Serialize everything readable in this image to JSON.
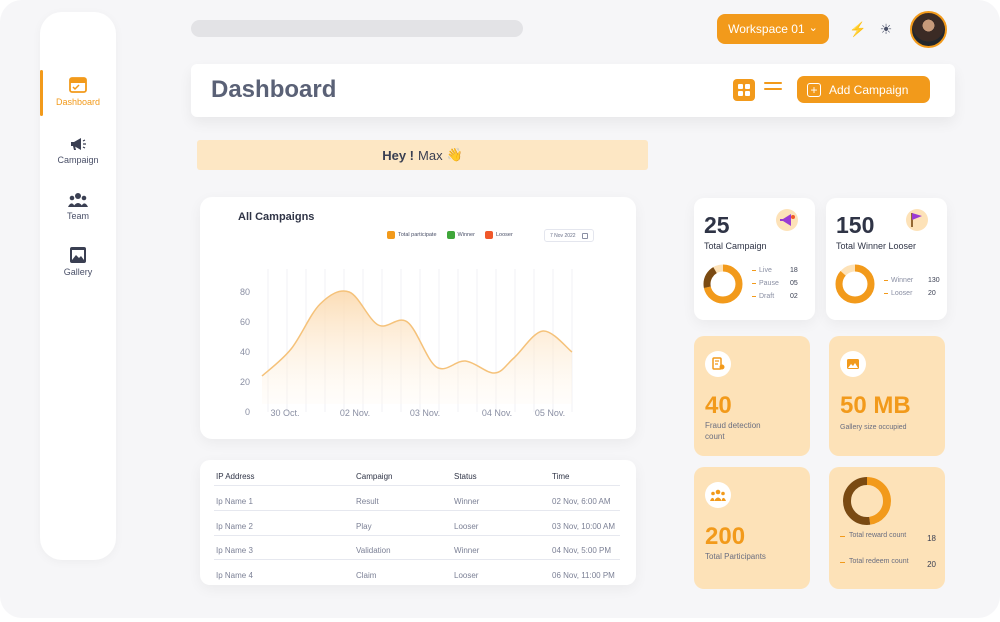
{
  "topbar": {
    "workspace": "Workspace 01",
    "workspace_caret": "⌄",
    "bolt_icon": "⚡",
    "sun_icon": "☀"
  },
  "sidebar": {
    "items": [
      {
        "label": "Dashboard",
        "icon": "dashboard-icon",
        "active": true
      },
      {
        "label": "Campaign",
        "icon": "megaphone-icon",
        "active": false
      },
      {
        "label": "Team",
        "icon": "team-icon",
        "active": false
      },
      {
        "label": "Gallery",
        "icon": "gallery-icon",
        "active": false
      }
    ]
  },
  "header": {
    "title": "Dashboard",
    "add_button": "Add Campaign",
    "add_icon": "+"
  },
  "greeting": {
    "bold": "Hey !",
    "name": "Max",
    "emoji": "👋"
  },
  "chart": {
    "date": "7 Nov 2022"
  },
  "chart_data": {
    "type": "area",
    "title": "All Campaigns",
    "legend": [
      {
        "name": "Total participate",
        "color": "#f29a1b"
      },
      {
        "name": "Winner",
        "color": "#3fa63a"
      },
      {
        "name": "Looser",
        "color": "#f0582a"
      }
    ],
    "x_tick_labels": [
      "30 Oct.",
      "02 Nov.",
      "03 Nov.",
      "04 Nov.",
      "05 Nov."
    ],
    "y_ticks": [
      0,
      20,
      40,
      60,
      80
    ],
    "ylim": [
      0,
      90
    ],
    "grid": "vertical",
    "series": [
      {
        "name": "Total participate",
        "color": "#f5c27a",
        "x": [
          0,
          0.6,
          1.2,
          1.8,
          2.4,
          3.0,
          3.6,
          4.2,
          4.8,
          5.2,
          5.8,
          6.4
        ],
        "y": [
          24,
          42,
          72,
          80,
          58,
          60,
          30,
          34,
          26,
          36,
          54,
          40
        ]
      }
    ]
  },
  "table": {
    "headers": [
      "IP Address",
      "Campaign",
      "Status",
      "Time"
    ],
    "rows": [
      [
        "Ip Name 1",
        "Result",
        "Winner",
        "02 Nov, 6:00 AM"
      ],
      [
        "Ip Name 2",
        "Play",
        "Looser",
        "03 Nov, 10:00 AM"
      ],
      [
        "Ip Name 3",
        "Validation",
        "Winner",
        "04 Nov, 5:00 PM"
      ],
      [
        "Ip Name 4",
        "Claim",
        "Looser",
        "06 Nov, 11:00 PM"
      ]
    ]
  },
  "total_campaign": {
    "value": "25",
    "label": "Total Campaign",
    "icon": "megaphone-icon",
    "breakdown": [
      {
        "label": "Live",
        "value": "18"
      },
      {
        "label": "Pause",
        "value": "05"
      },
      {
        "label": "Draft",
        "value": "02"
      }
    ]
  },
  "winner_looser": {
    "value": "150",
    "label": "Total Winner Looser",
    "icon": "flag-icon",
    "breakdown": [
      {
        "label": "Winner",
        "value": "130"
      },
      {
        "label": "Looser",
        "value": "20"
      }
    ]
  },
  "fraud": {
    "value": "40",
    "label_line1": "Fraud detection",
    "label_line2": "count",
    "icon": "fraud-icon"
  },
  "gallery_size": {
    "value": "50 MB",
    "label": "Gallery size occupied",
    "icon": "image-icon"
  },
  "participants": {
    "value": "200",
    "label": "Total Participants",
    "icon": "people-icon"
  },
  "rewards": {
    "items": [
      {
        "label": "Total reward count",
        "value": "18"
      },
      {
        "label": "Total redeem count",
        "value": "20"
      }
    ]
  },
  "colors": {
    "accent": "#f29a1b",
    "card_orange": "#fde2b8",
    "dark_brown": "#7a4a12"
  }
}
